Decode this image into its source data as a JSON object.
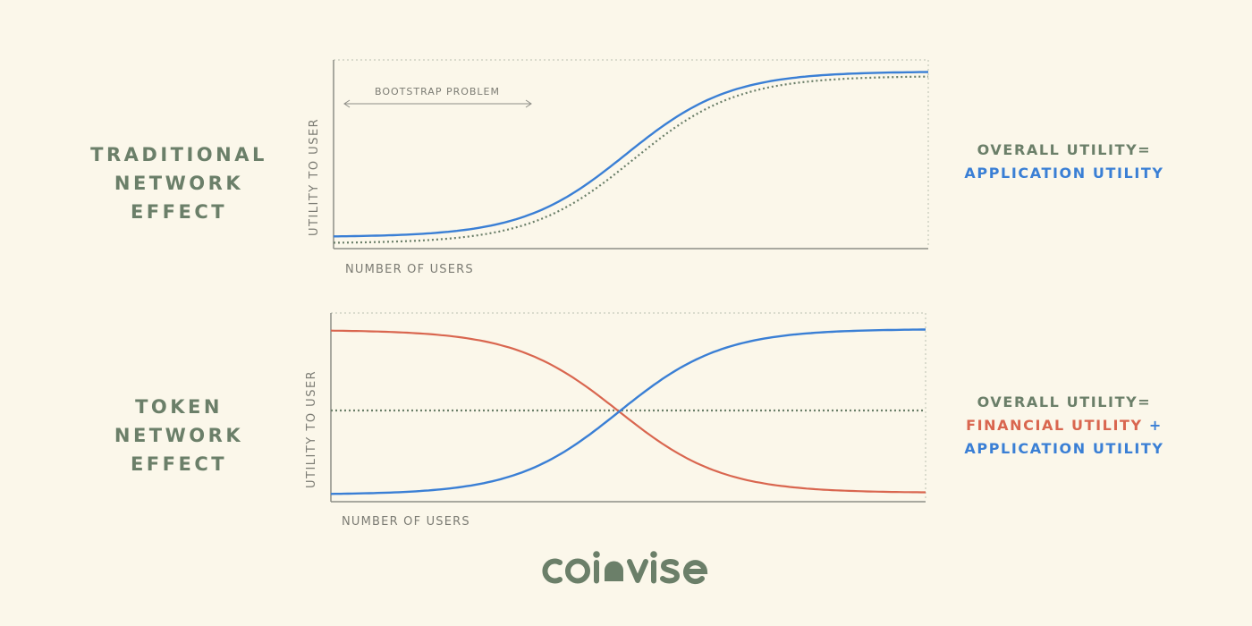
{
  "colors": {
    "background": "#fbf7ea",
    "title_green": "#6b7f69",
    "application_blue": "#3a7fd5",
    "financial_red": "#d9664f",
    "axis_gray": "#9b9b92"
  },
  "top_panel": {
    "title_lines": [
      "TRADITIONAL",
      "NETWORK",
      "EFFECT"
    ],
    "annotation": "BOOTSTRAP PROBLEM",
    "y_axis_label": "UTILITY TO USER",
    "x_axis_label": "NUMBER OF USERS",
    "formula": {
      "line1": "OVERALL UTILITY=",
      "line2": "APPLICATION UTILITY"
    }
  },
  "bottom_panel": {
    "title_lines": [
      "TOKEN",
      "NETWORK",
      "EFFECT"
    ],
    "y_axis_label": "UTILITY TO USER",
    "x_axis_label": "NUMBER OF USERS",
    "formula": {
      "line1": "OVERALL UTILITY=",
      "line2_red": "FINANCIAL UTILITY",
      "line2_plus": " +",
      "line3": "APPLICATION UTILITY"
    }
  },
  "logo": {
    "brand": "coinvise",
    "icon": "coinvise-logo-icon"
  }
}
